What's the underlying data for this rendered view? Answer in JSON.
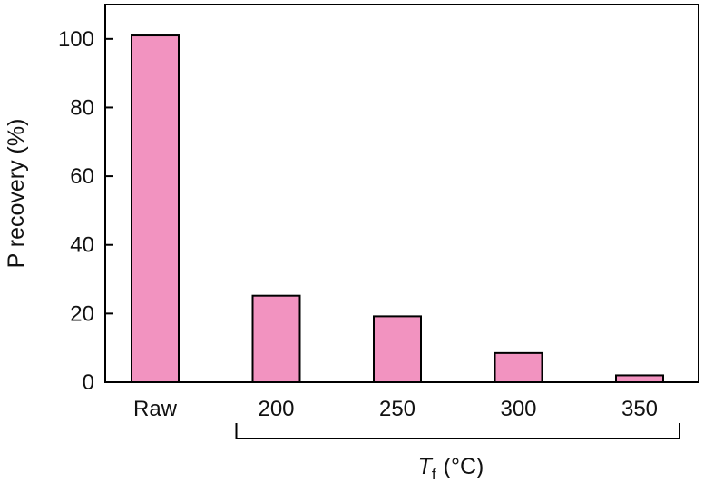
{
  "chart_data": {
    "type": "bar",
    "categories": [
      "Raw",
      "200",
      "250",
      "300",
      "350"
    ],
    "values": [
      101,
      25.2,
      19.2,
      8.5,
      2.0
    ],
    "ylabel": "P recovery (%)",
    "xlabel": {
      "symbol": "T",
      "subscript": "f",
      "unit": "(°C)"
    },
    "ylim": [
      0,
      110
    ],
    "yticks": [
      "0",
      "20",
      "40",
      "60",
      "80",
      "100"
    ],
    "ytick_values": [
      0,
      20,
      40,
      60,
      80,
      100
    ],
    "bracket_categories": [
      "200",
      "250",
      "300",
      "350"
    ],
    "grid": false,
    "legend": "none",
    "colors": {
      "bar_fill": "#f293c0",
      "bar_stroke": "#000000",
      "axis": "#000000"
    }
  }
}
